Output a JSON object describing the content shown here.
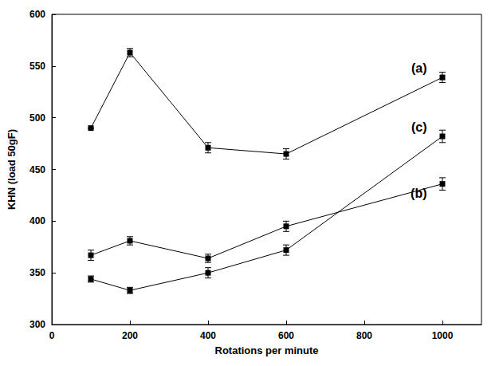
{
  "chart_data": {
    "type": "line",
    "x_label": "Rotations per minute",
    "y_label": "KHN (load 50gF)",
    "x": [
      100,
      200,
      400,
      600,
      1000
    ],
    "xlim": [
      0,
      1100
    ],
    "xticks": [
      0,
      200,
      400,
      600,
      800,
      1000
    ],
    "ylim": [
      300,
      600
    ],
    "yticks": [
      300,
      350,
      400,
      450,
      500,
      550,
      600
    ],
    "marker": "square",
    "line_style": "solid",
    "series": [
      {
        "name": "(a)",
        "color": "#000000",
        "values": [
          490,
          563,
          471,
          465,
          539
        ],
        "errors": [
          0,
          4,
          5,
          5,
          5
        ]
      },
      {
        "name": "(b)",
        "color": "#000000",
        "values": [
          367,
          381,
          364,
          395,
          436
        ],
        "errors": [
          5,
          4,
          4,
          5,
          6
        ]
      },
      {
        "name": "(c)",
        "color": "#000000",
        "values": [
          344,
          333,
          350,
          372,
          482
        ],
        "errors": [
          3,
          3,
          5,
          5,
          6
        ]
      }
    ]
  }
}
